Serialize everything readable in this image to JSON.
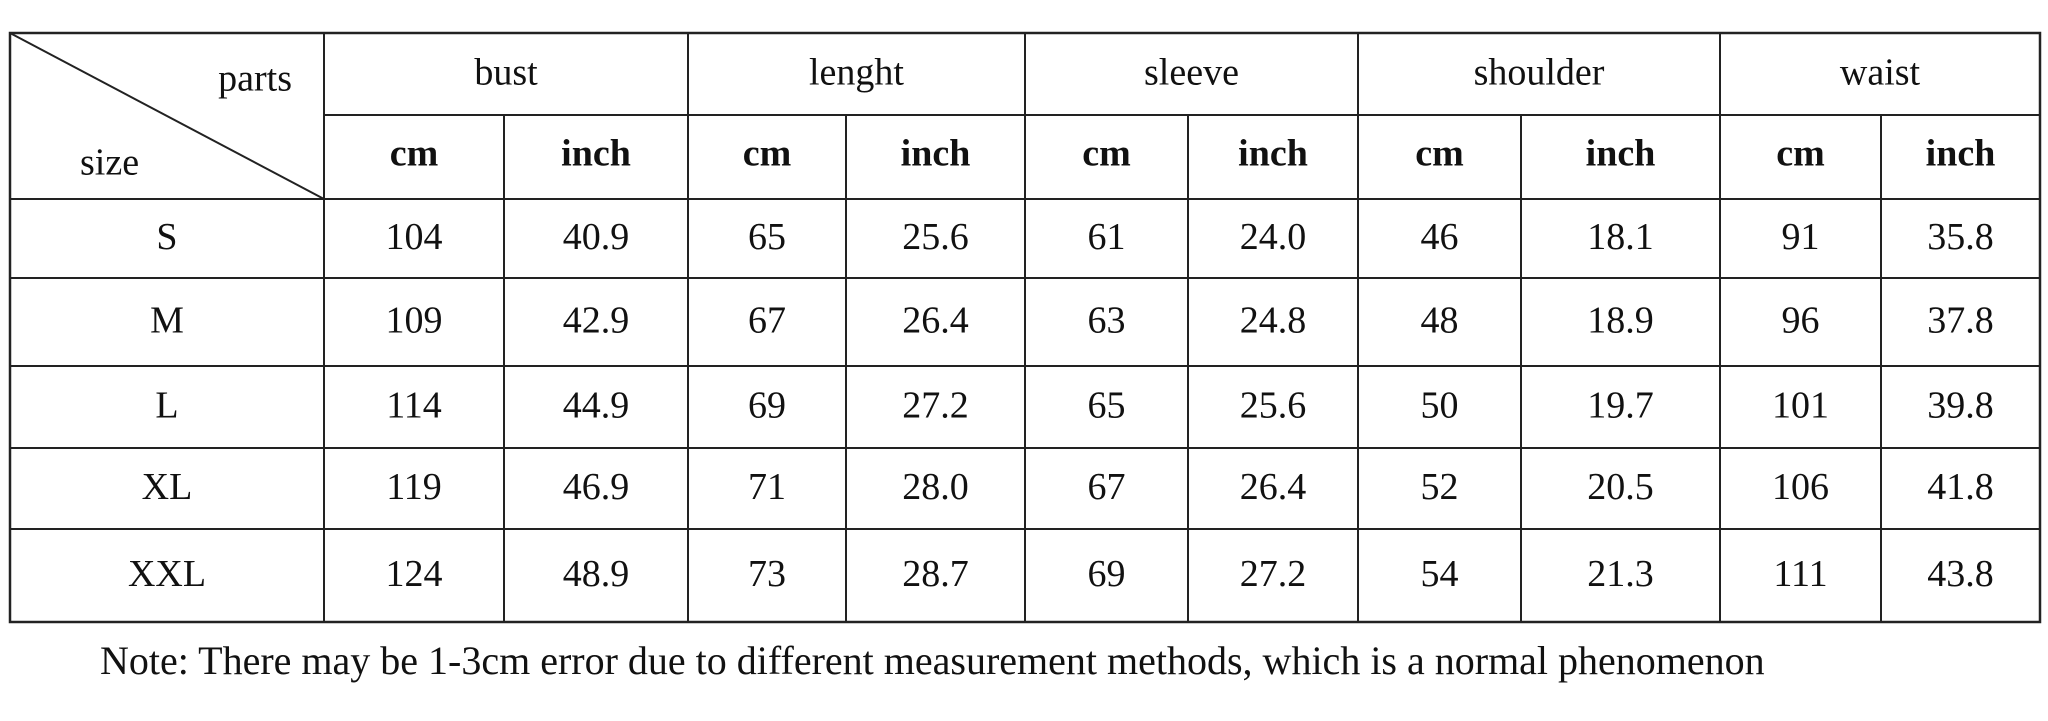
{
  "table": {
    "corner_top": "parts",
    "corner_bottom": "size",
    "parts": [
      {
        "name": "bust",
        "units": [
          "cm",
          "inch"
        ]
      },
      {
        "name": "lenght",
        "units": [
          "cm",
          "inch"
        ]
      },
      {
        "name": "sleeve",
        "units": [
          "cm",
          "inch"
        ]
      },
      {
        "name": "shoulder",
        "units": [
          "cm",
          "inch"
        ]
      },
      {
        "name": "waist",
        "units": [
          "cm",
          "inch"
        ]
      }
    ],
    "rows": [
      {
        "size": "S",
        "values": [
          "104",
          "40.9",
          "65",
          "25.6",
          "61",
          "24.0",
          "46",
          "18.1",
          "91",
          "35.8"
        ]
      },
      {
        "size": "M",
        "values": [
          "109",
          "42.9",
          "67",
          "26.4",
          "63",
          "24.8",
          "48",
          "18.9",
          "96",
          "37.8"
        ]
      },
      {
        "size": "L",
        "values": [
          "114",
          "44.9",
          "69",
          "27.2",
          "65",
          "25.6",
          "50",
          "19.7",
          "101",
          "39.8"
        ]
      },
      {
        "size": "XL",
        "values": [
          "119",
          "46.9",
          "71",
          "28.0",
          "67",
          "26.4",
          "52",
          "20.5",
          "106",
          "41.8"
        ]
      },
      {
        "size": "XXL",
        "values": [
          "124",
          "48.9",
          "73",
          "28.7",
          "69",
          "27.2",
          "54",
          "21.3",
          "111",
          "43.8"
        ]
      }
    ]
  },
  "note": "Note: There may be 1-3cm error due to different measurement methods, which is a normal phenomenon"
}
